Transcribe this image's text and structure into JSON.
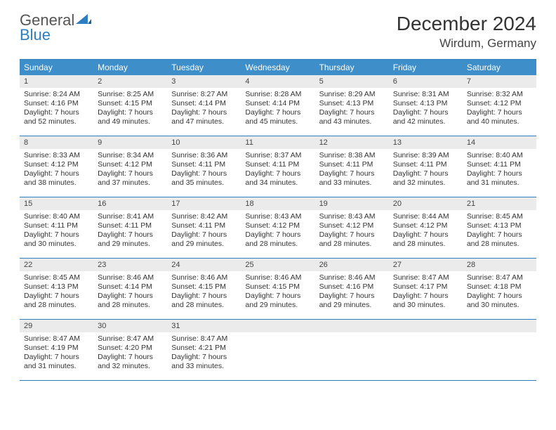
{
  "brand": {
    "text1": "General",
    "text2": "Blue"
  },
  "title": {
    "month": "December 2024",
    "location": "Wirdum, Germany"
  },
  "weekdays": [
    "Sunday",
    "Monday",
    "Tuesday",
    "Wednesday",
    "Thursday",
    "Friday",
    "Saturday"
  ],
  "colors": {
    "header_bg": "#3d8ec9",
    "border": "#2d7dc1",
    "daynum_bg": "#ebebeb"
  },
  "font": {
    "title_size": 28,
    "location_size": 17,
    "weekday_size": 12,
    "daynum_size": 11,
    "body_size": 10.5
  },
  "weeks": [
    [
      {
        "num": "1",
        "sunrise": "Sunrise: 8:24 AM",
        "sunset": "Sunset: 4:16 PM",
        "daylight": "Daylight: 7 hours and 52 minutes."
      },
      {
        "num": "2",
        "sunrise": "Sunrise: 8:25 AM",
        "sunset": "Sunset: 4:15 PM",
        "daylight": "Daylight: 7 hours and 49 minutes."
      },
      {
        "num": "3",
        "sunrise": "Sunrise: 8:27 AM",
        "sunset": "Sunset: 4:14 PM",
        "daylight": "Daylight: 7 hours and 47 minutes."
      },
      {
        "num": "4",
        "sunrise": "Sunrise: 8:28 AM",
        "sunset": "Sunset: 4:14 PM",
        "daylight": "Daylight: 7 hours and 45 minutes."
      },
      {
        "num": "5",
        "sunrise": "Sunrise: 8:29 AM",
        "sunset": "Sunset: 4:13 PM",
        "daylight": "Daylight: 7 hours and 43 minutes."
      },
      {
        "num": "6",
        "sunrise": "Sunrise: 8:31 AM",
        "sunset": "Sunset: 4:13 PM",
        "daylight": "Daylight: 7 hours and 42 minutes."
      },
      {
        "num": "7",
        "sunrise": "Sunrise: 8:32 AM",
        "sunset": "Sunset: 4:12 PM",
        "daylight": "Daylight: 7 hours and 40 minutes."
      }
    ],
    [
      {
        "num": "8",
        "sunrise": "Sunrise: 8:33 AM",
        "sunset": "Sunset: 4:12 PM",
        "daylight": "Daylight: 7 hours and 38 minutes."
      },
      {
        "num": "9",
        "sunrise": "Sunrise: 8:34 AM",
        "sunset": "Sunset: 4:12 PM",
        "daylight": "Daylight: 7 hours and 37 minutes."
      },
      {
        "num": "10",
        "sunrise": "Sunrise: 8:36 AM",
        "sunset": "Sunset: 4:11 PM",
        "daylight": "Daylight: 7 hours and 35 minutes."
      },
      {
        "num": "11",
        "sunrise": "Sunrise: 8:37 AM",
        "sunset": "Sunset: 4:11 PM",
        "daylight": "Daylight: 7 hours and 34 minutes."
      },
      {
        "num": "12",
        "sunrise": "Sunrise: 8:38 AM",
        "sunset": "Sunset: 4:11 PM",
        "daylight": "Daylight: 7 hours and 33 minutes."
      },
      {
        "num": "13",
        "sunrise": "Sunrise: 8:39 AM",
        "sunset": "Sunset: 4:11 PM",
        "daylight": "Daylight: 7 hours and 32 minutes."
      },
      {
        "num": "14",
        "sunrise": "Sunrise: 8:40 AM",
        "sunset": "Sunset: 4:11 PM",
        "daylight": "Daylight: 7 hours and 31 minutes."
      }
    ],
    [
      {
        "num": "15",
        "sunrise": "Sunrise: 8:40 AM",
        "sunset": "Sunset: 4:11 PM",
        "daylight": "Daylight: 7 hours and 30 minutes."
      },
      {
        "num": "16",
        "sunrise": "Sunrise: 8:41 AM",
        "sunset": "Sunset: 4:11 PM",
        "daylight": "Daylight: 7 hours and 29 minutes."
      },
      {
        "num": "17",
        "sunrise": "Sunrise: 8:42 AM",
        "sunset": "Sunset: 4:11 PM",
        "daylight": "Daylight: 7 hours and 29 minutes."
      },
      {
        "num": "18",
        "sunrise": "Sunrise: 8:43 AM",
        "sunset": "Sunset: 4:12 PM",
        "daylight": "Daylight: 7 hours and 28 minutes."
      },
      {
        "num": "19",
        "sunrise": "Sunrise: 8:43 AM",
        "sunset": "Sunset: 4:12 PM",
        "daylight": "Daylight: 7 hours and 28 minutes."
      },
      {
        "num": "20",
        "sunrise": "Sunrise: 8:44 AM",
        "sunset": "Sunset: 4:12 PM",
        "daylight": "Daylight: 7 hours and 28 minutes."
      },
      {
        "num": "21",
        "sunrise": "Sunrise: 8:45 AM",
        "sunset": "Sunset: 4:13 PM",
        "daylight": "Daylight: 7 hours and 28 minutes."
      }
    ],
    [
      {
        "num": "22",
        "sunrise": "Sunrise: 8:45 AM",
        "sunset": "Sunset: 4:13 PM",
        "daylight": "Daylight: 7 hours and 28 minutes."
      },
      {
        "num": "23",
        "sunrise": "Sunrise: 8:46 AM",
        "sunset": "Sunset: 4:14 PM",
        "daylight": "Daylight: 7 hours and 28 minutes."
      },
      {
        "num": "24",
        "sunrise": "Sunrise: 8:46 AM",
        "sunset": "Sunset: 4:15 PM",
        "daylight": "Daylight: 7 hours and 28 minutes."
      },
      {
        "num": "25",
        "sunrise": "Sunrise: 8:46 AM",
        "sunset": "Sunset: 4:15 PM",
        "daylight": "Daylight: 7 hours and 29 minutes."
      },
      {
        "num": "26",
        "sunrise": "Sunrise: 8:46 AM",
        "sunset": "Sunset: 4:16 PM",
        "daylight": "Daylight: 7 hours and 29 minutes."
      },
      {
        "num": "27",
        "sunrise": "Sunrise: 8:47 AM",
        "sunset": "Sunset: 4:17 PM",
        "daylight": "Daylight: 7 hours and 30 minutes."
      },
      {
        "num": "28",
        "sunrise": "Sunrise: 8:47 AM",
        "sunset": "Sunset: 4:18 PM",
        "daylight": "Daylight: 7 hours and 30 minutes."
      }
    ],
    [
      {
        "num": "29",
        "sunrise": "Sunrise: 8:47 AM",
        "sunset": "Sunset: 4:19 PM",
        "daylight": "Daylight: 7 hours and 31 minutes."
      },
      {
        "num": "30",
        "sunrise": "Sunrise: 8:47 AM",
        "sunset": "Sunset: 4:20 PM",
        "daylight": "Daylight: 7 hours and 32 minutes."
      },
      {
        "num": "31",
        "sunrise": "Sunrise: 8:47 AM",
        "sunset": "Sunset: 4:21 PM",
        "daylight": "Daylight: 7 hours and 33 minutes."
      },
      {
        "num": "",
        "sunrise": "",
        "sunset": "",
        "daylight": ""
      },
      {
        "num": "",
        "sunrise": "",
        "sunset": "",
        "daylight": ""
      },
      {
        "num": "",
        "sunrise": "",
        "sunset": "",
        "daylight": ""
      },
      {
        "num": "",
        "sunrise": "",
        "sunset": "",
        "daylight": ""
      }
    ]
  ]
}
